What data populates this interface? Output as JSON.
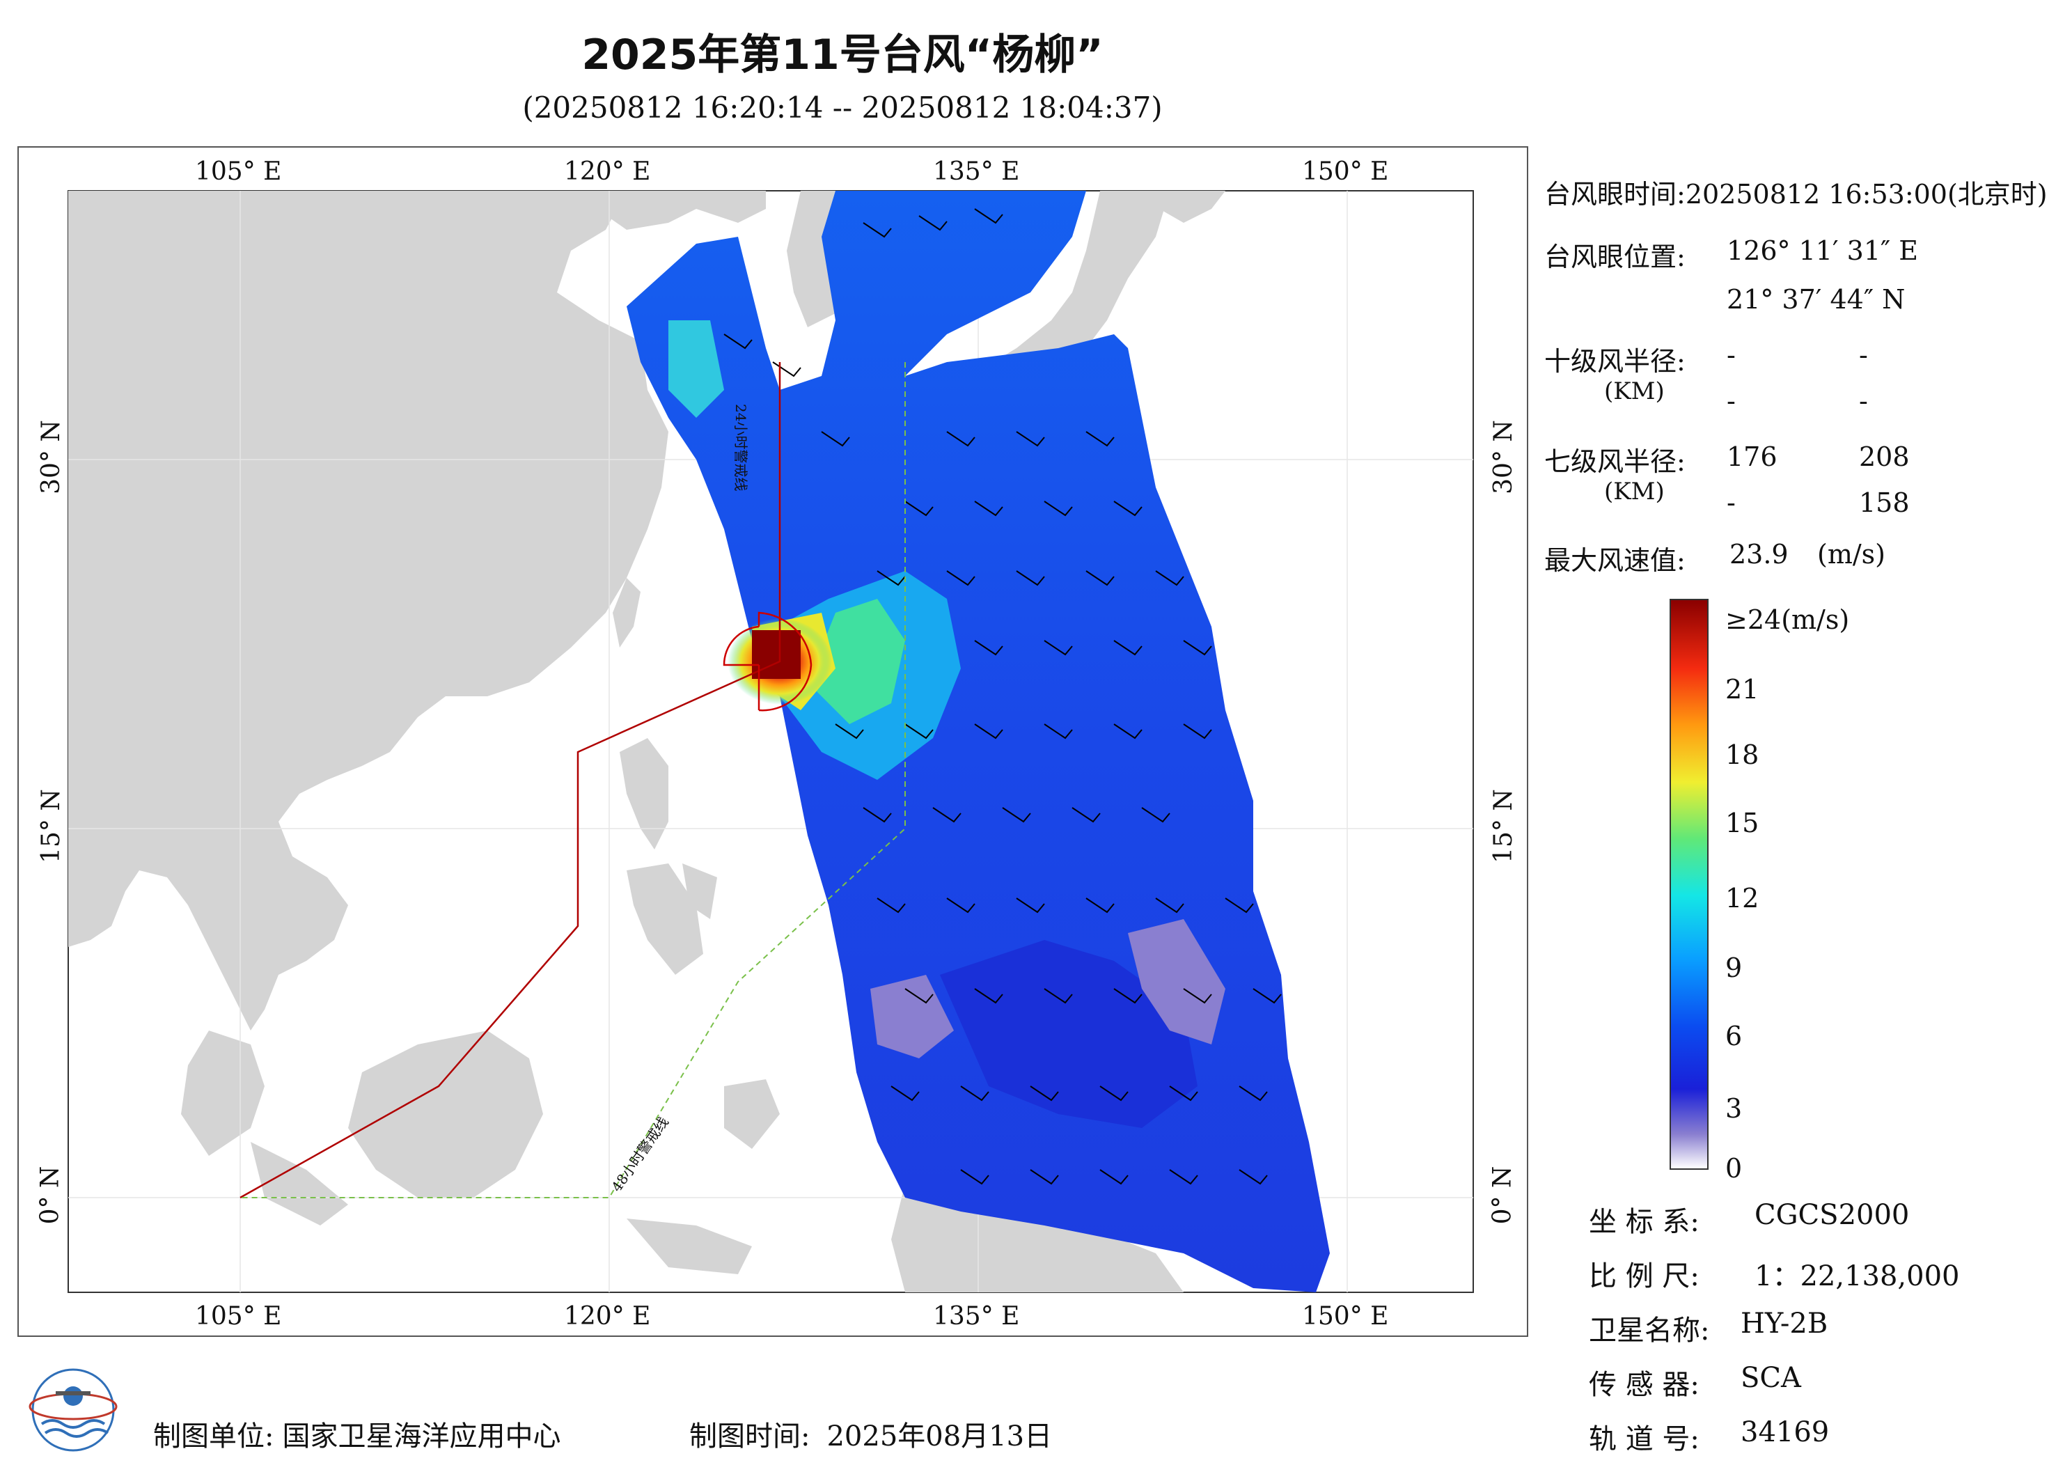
{
  "header": {
    "title": "2025年第11号台风“杨柳”",
    "subtitle": "(20250812 16:20:14 -- 20250812 18:04:37)"
  },
  "map": {
    "lon_labels": [
      "105° E",
      "120° E",
      "135° E",
      "150° E"
    ],
    "lat_labels": [
      "30° N",
      "15° N",
      "0° N"
    ],
    "warning_line_24h": "24小时警戒线",
    "warning_line_48h": "48小时警戒线"
  },
  "info": {
    "eye_time_label": "台风眼时间:",
    "eye_time_value": "20250812 16:53:00(北京时)",
    "eye_pos_label": "台风眼位置:",
    "eye_lon": "126° 11′ 31″ E",
    "eye_lat": "21° 37′ 44″ N",
    "r10_label": "十级风半径:",
    "r10_unit": "(KM)",
    "r10_values": [
      "-",
      "-",
      "-",
      "-"
    ],
    "r7_label": "七级风半径:",
    "r7_unit": "(KM)",
    "r7_values": [
      "176",
      "208",
      "-",
      "158"
    ],
    "max_wind_label": "最大风速值:",
    "max_wind_value": "23.9",
    "max_wind_unit": "(m/s)"
  },
  "colorbar": {
    "ticks": [
      "≥24(m/s)",
      "21",
      "18",
      "15",
      "12",
      "9",
      "6",
      "3",
      "0"
    ]
  },
  "meta": {
    "crs_label": "坐 标 系:",
    "crs_value": "CGCS2000",
    "scale_label": "比 例 尺:",
    "scale_value": "1：22,138,000",
    "satellite_label": "卫星名称:",
    "satellite_value": "HY-2B",
    "sensor_label": "传 感 器:",
    "sensor_value": "SCA",
    "orbit_label": "轨 道 号:",
    "orbit_value": "34169"
  },
  "footer": {
    "unit_label": "制图单位:",
    "unit_value": "国家卫星海洋应用中心",
    "date_label": "制图时间:",
    "date_value": "2025年08月13日"
  },
  "colors": {
    "land": "#d4d4d4",
    "ocean": "#ffffff",
    "warning_24h": "#b00000",
    "warning_48h": "#7ac04a"
  }
}
